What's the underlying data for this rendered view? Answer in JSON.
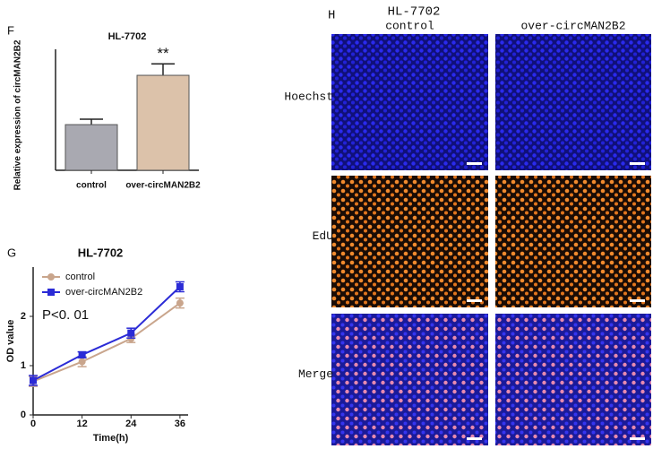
{
  "chart_data": [
    {
      "type": "bar",
      "panel_label": "F",
      "title": "HL-7702",
      "ylabel": "Relative expression of circMAN2B2",
      "categories": [
        "control",
        "over-circMAN2B2"
      ],
      "values": [
        1.0,
        2.08
      ],
      "errors": [
        0.12,
        0.25
      ],
      "colors": [
        "#a9a9b1",
        "#dcc2aa"
      ],
      "ylim": [
        0,
        2.65
      ],
      "annotation": "**"
    },
    {
      "type": "line",
      "panel_label": "G",
      "title": "HL-7702",
      "xlabel": "Time(h)",
      "ylabel": "OD value",
      "x": [
        0,
        12,
        24,
        36
      ],
      "xlim": [
        0,
        38
      ],
      "xticks": [
        0,
        12,
        24,
        36
      ],
      "ylim": [
        0,
        3
      ],
      "yticks": [
        0,
        1,
        2
      ],
      "legend": "upper-left",
      "annotation": "P<0. 01",
      "series": [
        {
          "name": "control",
          "color": "#c9a58c",
          "marker": "circle",
          "values": [
            0.68,
            1.08,
            1.55,
            2.27
          ],
          "errors": [
            0.1,
            0.1,
            0.08,
            0.1
          ]
        },
        {
          "name": "over-circMAN2B2",
          "color": "#2b2bd6",
          "marker": "square",
          "values": [
            0.7,
            1.22,
            1.66,
            2.6
          ],
          "errors": [
            0.1,
            0.06,
            0.1,
            0.1
          ]
        }
      ]
    }
  ],
  "panel_h": {
    "panel_label": "H",
    "title": "HL-7702",
    "columns": [
      "control",
      "over-circMAN2B2"
    ],
    "rows": [
      "Hoechst",
      "EdU",
      "Merge"
    ]
  }
}
